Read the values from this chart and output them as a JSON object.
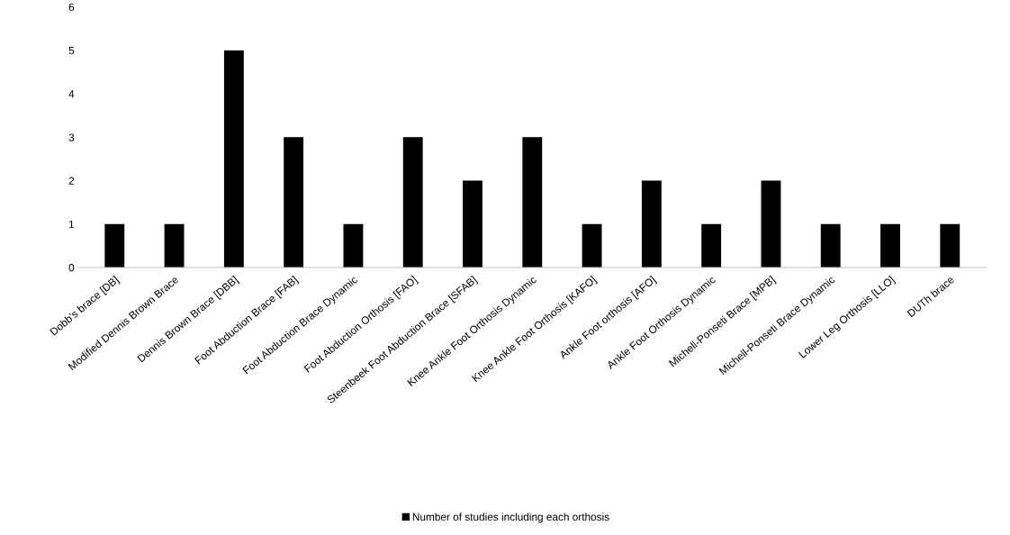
{
  "chart_data": {
    "type": "bar",
    "categories": [
      "Dobb's brace [DB]",
      "Modified Dennis Brown Brace",
      "Dennis Brown Brace [DBB]",
      "Foot Abduction Brace [FAB]",
      "Foot Abduction Brace Dynamic",
      "Foot Abduction Orthosis [FAO]",
      "Steenbeek Foot Abduction Brace [SFAB]",
      "Knee Ankle Foot Orthosis Dynamic",
      "Knee Ankle Foot Orthosis [KAFO]",
      "Ankle Foot orthosis [AFO]",
      "Ankle Foot Orthosis Dynamic",
      "Michell-Ponseti Brace [MPB]",
      "Michell-Ponseti Brace Dynamic",
      "Lower Leg Orthosis [LLO]",
      "DUTh brace"
    ],
    "series": [
      {
        "name": "Number of studies including each orthosis",
        "color": "#000000",
        "values": [
          1,
          1,
          5,
          3,
          1,
          3,
          2,
          3,
          1,
          2,
          1,
          2,
          1,
          1,
          1
        ]
      }
    ],
    "ylim": [
      0,
      6
    ],
    "yticks": [
      0,
      1,
      2,
      3,
      4,
      5,
      6
    ],
    "grid": false,
    "legend": "bottom"
  }
}
